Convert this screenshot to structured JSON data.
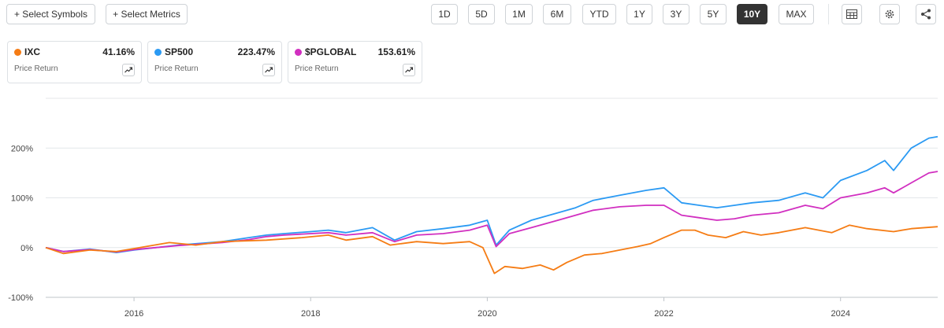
{
  "toolbar": {
    "select_symbols": "+ Select Symbols",
    "select_metrics": "+ Select Metrics",
    "ranges": [
      "1D",
      "5D",
      "1M",
      "6M",
      "YTD",
      "1Y",
      "3Y",
      "5Y",
      "10Y",
      "MAX"
    ],
    "active_range": "10Y",
    "icons": [
      "table-icon",
      "gear-icon",
      "share-icon"
    ]
  },
  "legend": [
    {
      "symbol": "IXC",
      "value": "41.16%",
      "sub": "Price Return",
      "color": "#f57c14"
    },
    {
      "symbol": "SP500",
      "value": "223.47%",
      "sub": "Price Return",
      "color": "#2b9af3"
    },
    {
      "symbol": "$PGLOBAL",
      "value": "153.61%",
      "sub": "Price Return",
      "color": "#d12fc0"
    }
  ],
  "chart_data": {
    "type": "line",
    "x_ticks": [
      "2016",
      "2018",
      "2020",
      "2022",
      "2024"
    ],
    "y_ticks": [
      "200%",
      "100%",
      "0%",
      "-100%"
    ],
    "ylim": [
      -100,
      300
    ],
    "xlim": [
      2015.0,
      2025.1
    ],
    "grid": true,
    "series": [
      {
        "name": "IXC",
        "color": "#f57c14",
        "points": [
          [
            2015.0,
            0
          ],
          [
            2015.2,
            -12
          ],
          [
            2015.5,
            -5
          ],
          [
            2015.8,
            -8
          ],
          [
            2016.0,
            -2
          ],
          [
            2016.4,
            10
          ],
          [
            2016.7,
            5
          ],
          [
            2017.0,
            12
          ],
          [
            2017.5,
            15
          ],
          [
            2017.9,
            20
          ],
          [
            2018.2,
            25
          ],
          [
            2018.4,
            15
          ],
          [
            2018.7,
            22
          ],
          [
            2018.9,
            5
          ],
          [
            2019.2,
            12
          ],
          [
            2019.5,
            8
          ],
          [
            2019.8,
            12
          ],
          [
            2019.95,
            0
          ],
          [
            2020.08,
            -52
          ],
          [
            2020.2,
            -38
          ],
          [
            2020.4,
            -42
          ],
          [
            2020.6,
            -35
          ],
          [
            2020.75,
            -45
          ],
          [
            2020.9,
            -30
          ],
          [
            2021.1,
            -15
          ],
          [
            2021.3,
            -12
          ],
          [
            2021.5,
            -5
          ],
          [
            2021.7,
            2
          ],
          [
            2021.85,
            8
          ],
          [
            2022.0,
            20
          ],
          [
            2022.2,
            35
          ],
          [
            2022.35,
            35
          ],
          [
            2022.5,
            25
          ],
          [
            2022.7,
            20
          ],
          [
            2022.9,
            32
          ],
          [
            2023.1,
            25
          ],
          [
            2023.3,
            30
          ],
          [
            2023.6,
            40
          ],
          [
            2023.9,
            30
          ],
          [
            2024.1,
            45
          ],
          [
            2024.3,
            38
          ],
          [
            2024.6,
            32
          ],
          [
            2024.8,
            38
          ],
          [
            2025.1,
            42
          ]
        ]
      },
      {
        "name": "SP500",
        "color": "#2b9af3",
        "points": [
          [
            2015.0,
            0
          ],
          [
            2015.2,
            -8
          ],
          [
            2015.5,
            -3
          ],
          [
            2015.8,
            -10
          ],
          [
            2016.0,
            -5
          ],
          [
            2016.5,
            5
          ],
          [
            2017.0,
            12
          ],
          [
            2017.3,
            20
          ],
          [
            2017.5,
            25
          ],
          [
            2017.7,
            28
          ],
          [
            2018.0,
            32
          ],
          [
            2018.2,
            35
          ],
          [
            2018.4,
            30
          ],
          [
            2018.7,
            40
          ],
          [
            2018.95,
            15
          ],
          [
            2019.2,
            32
          ],
          [
            2019.5,
            38
          ],
          [
            2019.8,
            45
          ],
          [
            2020.0,
            55
          ],
          [
            2020.1,
            5
          ],
          [
            2020.25,
            35
          ],
          [
            2020.5,
            55
          ],
          [
            2020.8,
            70
          ],
          [
            2021.0,
            80
          ],
          [
            2021.2,
            95
          ],
          [
            2021.5,
            105
          ],
          [
            2021.8,
            115
          ],
          [
            2022.0,
            120
          ],
          [
            2022.2,
            90
          ],
          [
            2022.4,
            85
          ],
          [
            2022.6,
            80
          ],
          [
            2022.8,
            85
          ],
          [
            2023.0,
            90
          ],
          [
            2023.3,
            95
          ],
          [
            2023.6,
            110
          ],
          [
            2023.8,
            100
          ],
          [
            2024.0,
            135
          ],
          [
            2024.3,
            155
          ],
          [
            2024.5,
            175
          ],
          [
            2024.6,
            155
          ],
          [
            2024.8,
            200
          ],
          [
            2025.0,
            220
          ],
          [
            2025.1,
            223
          ]
        ]
      },
      {
        "name": "$PGLOBAL",
        "color": "#d12fc0",
        "points": [
          [
            2015.0,
            0
          ],
          [
            2015.2,
            -8
          ],
          [
            2015.5,
            -4
          ],
          [
            2015.8,
            -9
          ],
          [
            2016.0,
            -4
          ],
          [
            2016.5,
            4
          ],
          [
            2017.0,
            10
          ],
          [
            2017.3,
            16
          ],
          [
            2017.5,
            22
          ],
          [
            2017.7,
            25
          ],
          [
            2018.0,
            28
          ],
          [
            2018.2,
            30
          ],
          [
            2018.4,
            25
          ],
          [
            2018.7,
            30
          ],
          [
            2018.95,
            12
          ],
          [
            2019.2,
            25
          ],
          [
            2019.5,
            28
          ],
          [
            2019.8,
            35
          ],
          [
            2020.0,
            45
          ],
          [
            2020.1,
            2
          ],
          [
            2020.25,
            28
          ],
          [
            2020.5,
            40
          ],
          [
            2020.8,
            55
          ],
          [
            2021.0,
            65
          ],
          [
            2021.2,
            75
          ],
          [
            2021.5,
            82
          ],
          [
            2021.8,
            85
          ],
          [
            2022.0,
            85
          ],
          [
            2022.2,
            65
          ],
          [
            2022.4,
            60
          ],
          [
            2022.6,
            55
          ],
          [
            2022.8,
            58
          ],
          [
            2023.0,
            65
          ],
          [
            2023.3,
            70
          ],
          [
            2023.6,
            85
          ],
          [
            2023.8,
            78
          ],
          [
            2024.0,
            100
          ],
          [
            2024.3,
            110
          ],
          [
            2024.5,
            120
          ],
          [
            2024.6,
            110
          ],
          [
            2024.8,
            130
          ],
          [
            2025.0,
            150
          ],
          [
            2025.1,
            153
          ]
        ]
      }
    ]
  }
}
